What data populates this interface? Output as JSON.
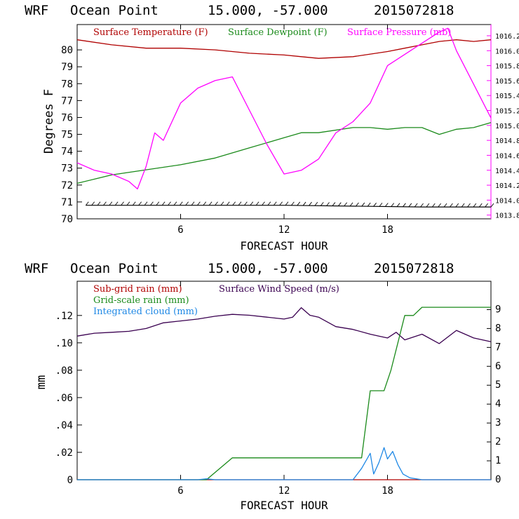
{
  "chart_data": [
    {
      "type": "line",
      "title": {
        "model": "WRF",
        "location": "Ocean Point",
        "coords": "15.000, -57.000",
        "run": "2015072818"
      },
      "xlabel": "FORECAST HOUR",
      "ylabel": "Degrees F",
      "xlim": [
        0,
        24
      ],
      "ylim": [
        70,
        81.5
      ],
      "y2lim": [
        1013.75,
        1016.35
      ],
      "xticks": [
        "6",
        "12",
        "18"
      ],
      "yticks": [
        "70",
        "71",
        "72",
        "73",
        "74",
        "75",
        "76",
        "77",
        "78",
        "79",
        "80"
      ],
      "y2ticks": [
        "1013.8",
        "1014.0",
        "1014.2",
        "1014.4",
        "1014.6",
        "1014.8",
        "1015.0",
        "1015.2",
        "1015.4",
        "1015.6",
        "1015.8",
        "1016.0",
        "1016.2"
      ],
      "legend": [
        "Surface Temperature (F)",
        "Surface Dewpoint (F)",
        "Surface Pressure (mb)"
      ],
      "series": [
        {
          "name": "Surface Temperature (F)",
          "color": "#b00000",
          "axis": "left",
          "x": [
            0,
            2,
            4,
            6,
            8,
            10,
            12,
            13,
            14,
            16,
            18,
            19,
            20,
            21,
            22,
            23,
            24
          ],
          "values": [
            80.6,
            80.3,
            80.1,
            80.1,
            80.0,
            79.8,
            79.7,
            79.6,
            79.5,
            79.6,
            79.9,
            80.1,
            80.3,
            80.5,
            80.6,
            80.5,
            80.6
          ]
        },
        {
          "name": "Surface Dewpoint (F)",
          "color": "#1a8a1a",
          "axis": "left",
          "x": [
            0,
            2,
            4,
            6,
            8,
            10,
            12,
            13,
            14,
            16,
            17,
            18,
            19,
            20,
            21,
            22,
            23,
            24
          ],
          "values": [
            72.1,
            72.6,
            72.9,
            73.2,
            73.6,
            74.2,
            74.8,
            75.1,
            75.1,
            75.4,
            75.4,
            75.3,
            75.4,
            75.4,
            75.0,
            75.3,
            75.4,
            75.7
          ]
        },
        {
          "name": "Surface Pressure (mb)",
          "color": "#ff00ff",
          "axis": "right",
          "x": [
            0,
            1,
            2,
            3,
            3.5,
            4,
            4.5,
            5,
            6,
            7,
            8,
            9,
            10,
            11,
            12,
            13,
            14,
            15,
            16,
            17,
            18,
            19,
            20,
            21,
            21.5,
            22,
            23,
            24
          ],
          "values": [
            1014.5,
            1014.4,
            1014.35,
            1014.25,
            1014.15,
            1014.45,
            1014.9,
            1014.8,
            1015.3,
            1015.5,
            1015.6,
            1015.65,
            1015.2,
            1014.75,
            1014.35,
            1014.4,
            1014.55,
            1014.9,
            1015.05,
            1015.3,
            1015.8,
            1015.95,
            1016.1,
            1016.25,
            1016.3,
            1016.0,
            1015.55,
            1015.1
          ]
        },
        {
          "name": "Surface Wind Barbs",
          "color": "#000000",
          "axis": "left",
          "x": [
            0.5,
            12,
            20,
            24
          ],
          "values": [
            70.8,
            70.8,
            70.7,
            70.7
          ]
        }
      ]
    },
    {
      "type": "line",
      "title": {
        "model": "WRF",
        "location": "Ocean Point",
        "coords": "15.000, -57.000",
        "run": "2015072818"
      },
      "xlabel": "FORECAST HOUR",
      "ylabel": "mm",
      "xlim": [
        0,
        24
      ],
      "ylim": [
        0,
        0.145
      ],
      "y2lim": [
        0,
        10.5
      ],
      "xticks": [
        "6",
        "12",
        "18"
      ],
      "yticks": [
        "0",
        ".02",
        ".04",
        ".06",
        ".08",
        ".10",
        ".12"
      ],
      "y2ticks": [
        "0",
        "1",
        "2",
        "3",
        "4",
        "5",
        "6",
        "7",
        "8",
        "9"
      ],
      "legend": [
        "Sub-grid rain (mm)",
        "Surface Wind Speed (m/s)",
        "Grid-scale rain (mm)",
        "Integrated cloud (mm)"
      ],
      "series": [
        {
          "name": "Sub-grid rain (mm)",
          "color": "#b00000",
          "axis": "left",
          "x": [
            0,
            24
          ],
          "values": [
            0,
            0
          ]
        },
        {
          "name": "Surface Wind Speed (m/s)",
          "color": "#3a0050",
          "axis": "right",
          "x": [
            0,
            1,
            2,
            3,
            4,
            5,
            6,
            7,
            8,
            9,
            10,
            11,
            12,
            12.5,
            13,
            13.5,
            14,
            15,
            16,
            17,
            17.5,
            18,
            18.5,
            19,
            20,
            21,
            22,
            23,
            24
          ],
          "values": [
            7.6,
            7.75,
            7.8,
            7.85,
            8.0,
            8.3,
            8.4,
            8.5,
            8.65,
            8.75,
            8.7,
            8.6,
            8.5,
            8.6,
            9.1,
            8.7,
            8.6,
            8.1,
            7.95,
            7.7,
            7.6,
            7.5,
            7.8,
            7.4,
            7.7,
            7.2,
            7.9,
            7.5,
            7.3
          ]
        },
        {
          "name": "Grid-scale rain (mm)",
          "color": "#1a8a1a",
          "axis": "left",
          "x": [
            0,
            7.5,
            9,
            16.5,
            17,
            17.8,
            18.2,
            18.6,
            19,
            19.5,
            20,
            24
          ],
          "values": [
            0,
            0,
            0.016,
            0.016,
            0.065,
            0.065,
            0.08,
            0.1,
            0.12,
            0.12,
            0.126,
            0.126
          ]
        },
        {
          "name": "Integrated cloud (mm)",
          "color": "#1e88e5",
          "axis": "right",
          "x": [
            0,
            7,
            7.5,
            8,
            16,
            16.5,
            17,
            17.2,
            17.5,
            17.8,
            18,
            18.3,
            18.6,
            18.9,
            19.3,
            20,
            24
          ],
          "values": [
            0,
            0,
            0.05,
            0,
            0,
            0.6,
            1.4,
            0.3,
            0.9,
            1.7,
            1.1,
            1.5,
            0.8,
            0.3,
            0.1,
            0,
            0
          ]
        }
      ]
    }
  ]
}
